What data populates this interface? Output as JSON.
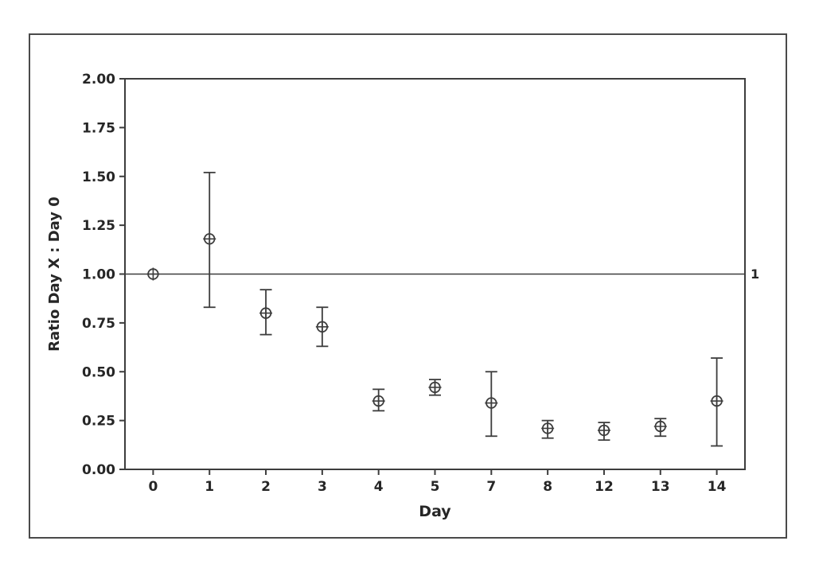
{
  "figure": {
    "background": "#ffffff",
    "border_color": "#4a4a4a"
  },
  "chart_data": {
    "type": "scatter",
    "subtype": "interval-plot-with-error-bars",
    "title": "",
    "xlabel": "Day",
    "ylabel": "Ratio Day X : Day 0",
    "categories": [
      "0",
      "1",
      "2",
      "3",
      "4",
      "5",
      "7",
      "8",
      "12",
      "13",
      "14"
    ],
    "series": [
      {
        "name": "Ratio Day X : Day 0",
        "marker": "circle-plus-icon",
        "points": [
          {
            "x": "0",
            "y": 1.0,
            "lo": null,
            "hi": null
          },
          {
            "x": "1",
            "y": 1.18,
            "lo": 0.83,
            "hi": 1.52
          },
          {
            "x": "2",
            "y": 0.8,
            "lo": 0.69,
            "hi": 0.92
          },
          {
            "x": "3",
            "y": 0.73,
            "lo": 0.63,
            "hi": 0.83
          },
          {
            "x": "4",
            "y": 0.35,
            "lo": 0.3,
            "hi": 0.41
          },
          {
            "x": "5",
            "y": 0.42,
            "lo": 0.38,
            "hi": 0.46
          },
          {
            "x": "7",
            "y": 0.34,
            "lo": 0.17,
            "hi": 0.5
          },
          {
            "x": "8",
            "y": 0.21,
            "lo": 0.16,
            "hi": 0.25
          },
          {
            "x": "12",
            "y": 0.2,
            "lo": 0.15,
            "hi": 0.24
          },
          {
            "x": "13",
            "y": 0.22,
            "lo": 0.17,
            "hi": 0.26
          },
          {
            "x": "14",
            "y": 0.35,
            "lo": 0.12,
            "hi": 0.57
          }
        ]
      }
    ],
    "ylim": [
      0.0,
      2.0
    ],
    "ytick_labels": [
      "0.00",
      "0.25",
      "0.50",
      "0.75",
      "1.00",
      "1.25",
      "1.50",
      "1.75",
      "2.00"
    ],
    "reference_line": {
      "y": 1.0,
      "label": "1"
    },
    "grid": false,
    "legend": "none",
    "colors": {
      "line": "#3d3d3d",
      "text": "#262626"
    }
  }
}
